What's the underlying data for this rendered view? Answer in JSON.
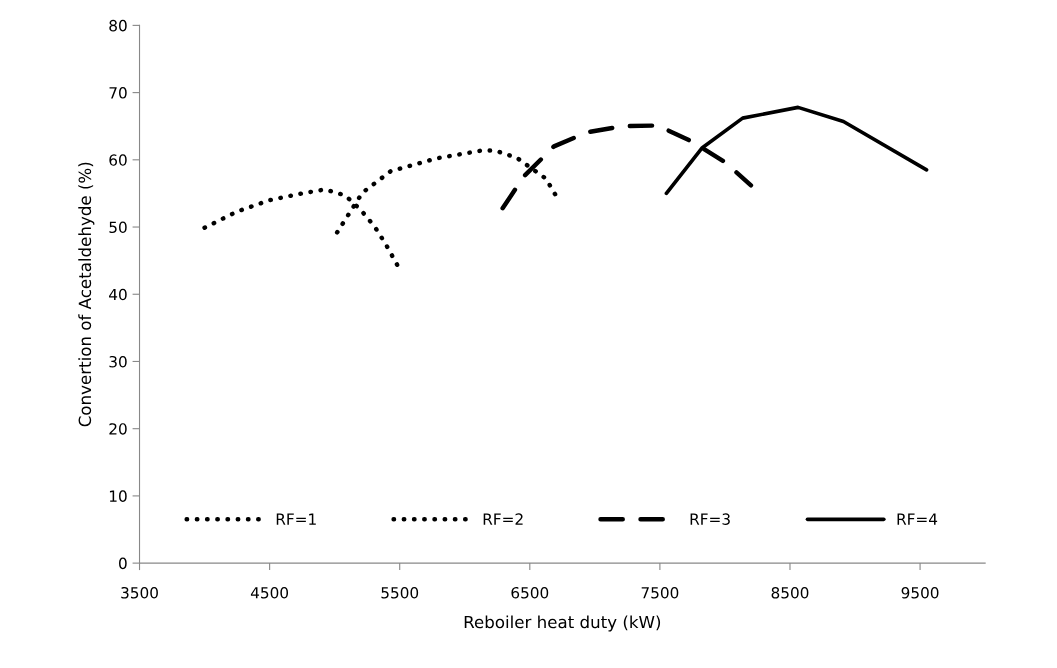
{
  "chart_data": {
    "type": "line",
    "xlabel": "Reboiler heat duty (kW)",
    "ylabel": "Convertion of Acetaldehyde (%)",
    "xlim": [
      3500,
      10000
    ],
    "xticks": [
      3500,
      4500,
      5500,
      6500,
      7500,
      8500,
      9500
    ],
    "ylim": [
      0,
      80
    ],
    "yticks": [
      0,
      10,
      20,
      30,
      40,
      50,
      60,
      70,
      80
    ],
    "grid": false,
    "legend": "bottom",
    "marker": "none",
    "series": [
      {
        "name": "RF=1",
        "color": "#000000",
        "line_style": "dotted",
        "x": [
          4000,
          4250,
          4500,
          4750,
          4926,
          5081,
          5198,
          5306,
          5391,
          5500
        ],
        "values": [
          49.9,
          52.3,
          54.0,
          55.0,
          55.6,
          54.7,
          52.6,
          50.1,
          47.5,
          43.7
        ]
      },
      {
        "name": "RF=2",
        "color": "#000000",
        "line_style": "dotted",
        "x": [
          5019,
          5213,
          5430,
          5779,
          6136,
          6229,
          6400,
          6624,
          6700
        ],
        "values": [
          49.2,
          55.1,
          58.3,
          60.2,
          61.4,
          61.4,
          60.3,
          57.2,
          54.7
        ]
      },
      {
        "name": "RF=3",
        "color": "#000000",
        "line_style": "dashed",
        "x": [
          6291,
          6453,
          6686,
          6942,
          7213,
          7484,
          7748,
          8004,
          8200
        ],
        "values": [
          52.8,
          57.5,
          62.0,
          64.1,
          65.0,
          65.1,
          62.7,
          59.6,
          56.2
        ]
      },
      {
        "name": "RF=4",
        "color": "#000000",
        "line_style": "solid",
        "x": [
          7550,
          7826,
          8136,
          8562,
          8911,
          9550
        ],
        "values": [
          55.0,
          61.8,
          66.2,
          67.8,
          65.7,
          58.5
        ]
      }
    ]
  }
}
